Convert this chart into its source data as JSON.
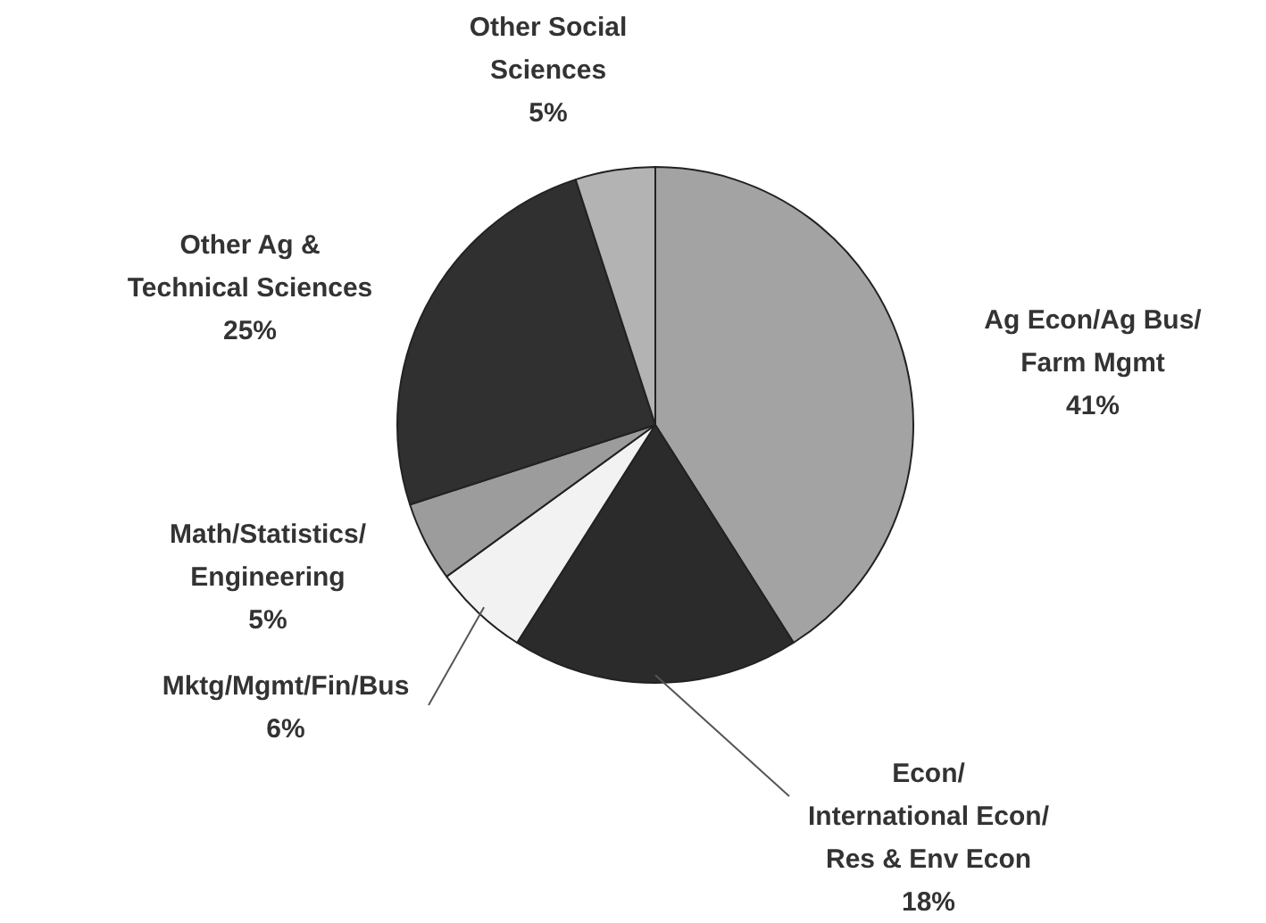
{
  "chart_data": {
    "type": "pie",
    "categories": [
      "Ag Econ/Ag Bus/\nFarm Mgmt",
      "Econ/\nInternational Econ/\nRes & Env Econ",
      "Mktg/Mgmt/Fin/Bus",
      "Math/Statistics/\nEngineering",
      "Other Ag &\nTechnical Sciences",
      "Other Social\nSciences"
    ],
    "values": [
      41,
      18,
      6,
      5,
      25,
      5
    ],
    "value_labels": [
      "41%",
      "18%",
      "6%",
      "5%",
      "25%",
      "5%"
    ],
    "colors": [
      "#a3a3a3",
      "#2b2b2b",
      "#f2f2f2",
      "#9c9c9c",
      "#303030",
      "#b3b3b3"
    ],
    "legend": false
  }
}
